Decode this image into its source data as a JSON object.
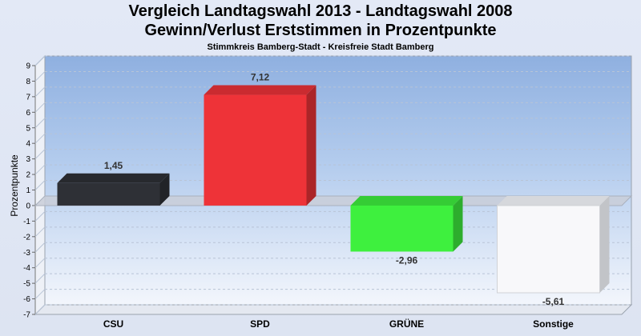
{
  "chart_data": {
    "type": "bar",
    "title": "Vergleich Landtagswahl 2013 - Landtagswahl 2008",
    "subtitle": "Gewinn/Verlust Erststimmen in Prozentpunkte",
    "subtitle2": "Stimmkreis Bamberg-Stadt - Kreisfreie Stadt Bamberg",
    "ylabel": "Prozentpunkte",
    "xlabel": "",
    "categories": [
      "CSU",
      "SPD",
      "GRÜNE",
      "Sonstige"
    ],
    "values": [
      1.45,
      7.12,
      -2.96,
      -5.61
    ],
    "value_labels": [
      "1,45",
      "7,12",
      "-2,96",
      "-5,61"
    ],
    "colors": [
      "#2e3036",
      "#ee3338",
      "#3ef03e",
      "#f8f8fa"
    ],
    "ylim": [
      -7,
      9
    ],
    "yticks": [
      "9",
      "8",
      "7",
      "6",
      "5",
      "4",
      "3",
      "2",
      "1",
      "0",
      "-1",
      "-2",
      "-3",
      "-4",
      "-5",
      "-6",
      "-7"
    ],
    "grid": true,
    "legend": "none"
  }
}
